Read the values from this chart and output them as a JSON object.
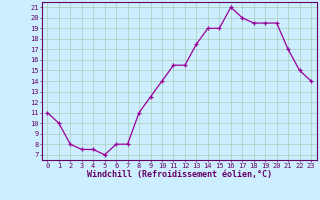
{
  "x": [
    0,
    1,
    2,
    3,
    4,
    5,
    6,
    7,
    8,
    9,
    10,
    11,
    12,
    13,
    14,
    15,
    16,
    17,
    18,
    19,
    20,
    21,
    22,
    23
  ],
  "y": [
    11,
    10,
    8,
    7.5,
    7.5,
    7,
    8,
    8,
    11,
    12.5,
    14,
    15.5,
    15.5,
    17.5,
    19,
    19,
    21,
    20,
    19.5,
    19.5,
    19.5,
    17,
    15,
    14
  ],
  "line_color": "#990099",
  "marker": "+",
  "marker_color": "#990099",
  "bg_color": "#cceeff",
  "grid_color": "#aaccbb",
  "xlabel": "Windchill (Refroidissement éolien,°C)",
  "ylim": [
    6.5,
    21.5
  ],
  "xlim": [
    -0.5,
    23.5
  ],
  "yticks": [
    7,
    8,
    9,
    10,
    11,
    12,
    13,
    14,
    15,
    16,
    17,
    18,
    19,
    20,
    21
  ],
  "xticks": [
    0,
    1,
    2,
    3,
    4,
    5,
    6,
    7,
    8,
    9,
    10,
    11,
    12,
    13,
    14,
    15,
    16,
    17,
    18,
    19,
    20,
    21,
    22,
    23
  ],
  "tick_fontsize": 5,
  "xlabel_fontsize": 6,
  "text_color": "#660066"
}
